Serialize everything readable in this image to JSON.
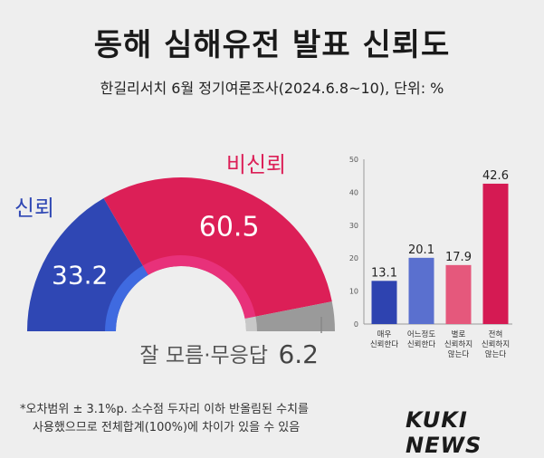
{
  "title": "동해 심해유전 발표 신뢰도",
  "subtitle": "한길리서치 6월 정기여론조사(2024.6.8~10), 단위: %",
  "footnote": [
    "*오차범위 ± 3.1%p. 소수점 두자리 이하 반올림된 수치를",
    "사용했으므로 전체합계(100%)에 차이가 있을 수 있음"
  ],
  "logo": "KUKI NEWS",
  "colors": {
    "trust": "#2f47b4",
    "distrust": "#dc1f57",
    "unknown": "#9a9a9a",
    "bar_very_trust": "#2e43b0",
    "bar_somewhat_trust": "#5a70cf",
    "bar_not_very_trust": "#e5587c",
    "bar_not_at_all_trust": "#d51a53"
  },
  "chart_data": [
    {
      "type": "pie",
      "subtype": "half-donut",
      "slices": [
        {
          "label": "신뢰",
          "value": 33.2,
          "value_label": "33.2"
        },
        {
          "label": "비신뢰",
          "value": 60.5,
          "value_label": "60.5"
        },
        {
          "label": "잘 모름·무응답",
          "value": 6.2,
          "value_label": "6.2"
        }
      ]
    },
    {
      "type": "bar",
      "categories": [
        [
          "매우",
          "신뢰한다"
        ],
        [
          "어느정도",
          "신뢰한다"
        ],
        [
          "별로",
          "신뢰하지",
          "않는다"
        ],
        [
          "전혀",
          "신뢰하지",
          "않는다"
        ]
      ],
      "values": [
        13.1,
        20.1,
        17.9,
        42.6
      ],
      "value_labels": [
        "13.1",
        "20.1",
        "17.9",
        "42.6"
      ],
      "ylim": [
        0,
        50
      ],
      "yticks": [
        0,
        10,
        20,
        30,
        40,
        50
      ],
      "ytick_labels": [
        "0",
        "10",
        "20",
        "30",
        "40",
        "50"
      ],
      "grid": false
    }
  ]
}
